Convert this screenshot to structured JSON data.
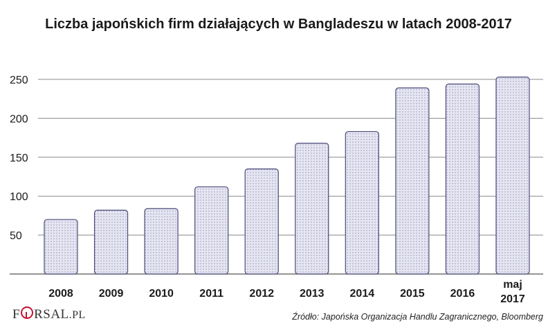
{
  "logo": {
    "text_f": "F",
    "text_rest": "RSAL",
    "text_pl": ".PL",
    "accent": "#c8102e"
  },
  "source": "Źródło:  Japońska Organizacja Handlu Zagranicznego, Bloomberg",
  "colors": {
    "bar_fill": "#e6e6f2",
    "bar_stroke": "#4a4a78",
    "dots": "#8e8eb8",
    "grid": "#888888"
  },
  "chart_data": {
    "type": "bar",
    "title": "Liczba japońskich firm działających w Bangladeszu w latach 2008-2017",
    "categories": [
      "2008",
      "2009",
      "2010",
      "2011",
      "2012",
      "2013",
      "2014",
      "2015",
      "2016",
      "maj 2017"
    ],
    "values": [
      70,
      82,
      84,
      112,
      135,
      168,
      183,
      239,
      244,
      253
    ],
    "yticks": [
      50,
      100,
      150,
      200,
      250
    ],
    "ylim": [
      0,
      270
    ],
    "xlabel": "",
    "ylabel": "",
    "grid": true,
    "legend": "none"
  }
}
